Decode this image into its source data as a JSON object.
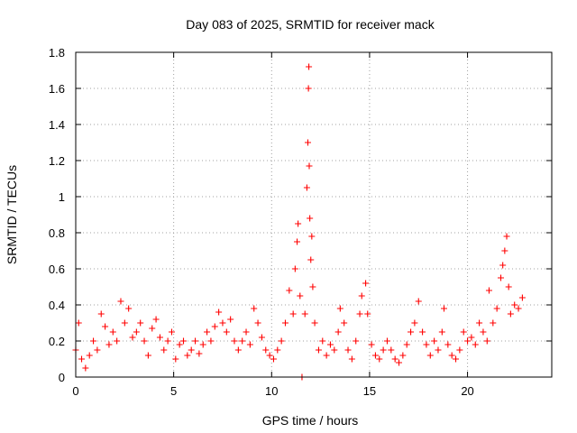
{
  "chart_data": {
    "type": "scatter",
    "title": "Day 083 of 2025, SRMTID for receiver mack",
    "xlabel": "GPS time / hours",
    "ylabel": "SRMTID / TECUs",
    "xlim": [
      0,
      24.3
    ],
    "ylim": [
      0,
      1.8
    ],
    "xticks": [
      0,
      5,
      10,
      15,
      20
    ],
    "xtick_labels": [
      "0",
      "5",
      "10",
      "15",
      "20"
    ],
    "yticks": [
      0,
      0.2,
      0.4,
      0.6,
      0.8,
      1,
      1.2,
      1.4,
      1.6,
      1.8
    ],
    "ytick_labels": [
      "0",
      "0.2",
      "0.4",
      "0.6",
      "0.8",
      "1",
      "1.2",
      "1.4",
      "1.6",
      "1.8"
    ],
    "grid": true,
    "marker": "+",
    "series": [
      {
        "name": "SRMTID",
        "color": "#ff0000",
        "points": [
          [
            0.0,
            0.15
          ],
          [
            0.15,
            0.3
          ],
          [
            0.3,
            0.1
          ],
          [
            0.5,
            0.05
          ],
          [
            0.7,
            0.12
          ],
          [
            0.9,
            0.2
          ],
          [
            1.1,
            0.15
          ],
          [
            1.3,
            0.35
          ],
          [
            1.5,
            0.28
          ],
          [
            1.7,
            0.18
          ],
          [
            1.9,
            0.25
          ],
          [
            2.1,
            0.2
          ],
          [
            2.3,
            0.42
          ],
          [
            2.5,
            0.3
          ],
          [
            2.7,
            0.38
          ],
          [
            2.9,
            0.22
          ],
          [
            3.1,
            0.25
          ],
          [
            3.3,
            0.3
          ],
          [
            3.5,
            0.2
          ],
          [
            3.7,
            0.12
          ],
          [
            3.9,
            0.27
          ],
          [
            4.1,
            0.32
          ],
          [
            4.3,
            0.22
          ],
          [
            4.5,
            0.15
          ],
          [
            4.7,
            0.2
          ],
          [
            4.9,
            0.25
          ],
          [
            5.1,
            0.1
          ],
          [
            5.3,
            0.18
          ],
          [
            5.5,
            0.2
          ],
          [
            5.7,
            0.12
          ],
          [
            5.9,
            0.15
          ],
          [
            6.1,
            0.2
          ],
          [
            6.3,
            0.13
          ],
          [
            6.5,
            0.18
          ],
          [
            6.7,
            0.25
          ],
          [
            6.9,
            0.2
          ],
          [
            7.1,
            0.28
          ],
          [
            7.3,
            0.36
          ],
          [
            7.5,
            0.3
          ],
          [
            7.7,
            0.25
          ],
          [
            7.9,
            0.32
          ],
          [
            8.1,
            0.2
          ],
          [
            8.3,
            0.15
          ],
          [
            8.5,
            0.2
          ],
          [
            8.7,
            0.25
          ],
          [
            8.9,
            0.18
          ],
          [
            9.1,
            0.38
          ],
          [
            9.3,
            0.3
          ],
          [
            9.5,
            0.22
          ],
          [
            9.7,
            0.15
          ],
          [
            9.9,
            0.12
          ],
          [
            10.1,
            0.1
          ],
          [
            10.3,
            0.15
          ],
          [
            10.5,
            0.2
          ],
          [
            10.7,
            0.3
          ],
          [
            10.9,
            0.48
          ],
          [
            11.1,
            0.35
          ],
          [
            11.2,
            0.6
          ],
          [
            11.3,
            0.75
          ],
          [
            11.35,
            0.85
          ],
          [
            11.45,
            0.45
          ],
          [
            11.55,
            0.0
          ],
          [
            11.7,
            0.35
          ],
          [
            11.8,
            1.05
          ],
          [
            11.85,
            1.3
          ],
          [
            11.88,
            1.6
          ],
          [
            11.9,
            1.72
          ],
          [
            11.92,
            1.17
          ],
          [
            11.95,
            0.88
          ],
          [
            12.0,
            0.65
          ],
          [
            12.05,
            0.78
          ],
          [
            12.1,
            0.5
          ],
          [
            12.2,
            0.3
          ],
          [
            12.4,
            0.15
          ],
          [
            12.6,
            0.2
          ],
          [
            12.8,
            0.12
          ],
          [
            13.0,
            0.18
          ],
          [
            13.2,
            0.15
          ],
          [
            13.4,
            0.25
          ],
          [
            13.5,
            0.38
          ],
          [
            13.7,
            0.3
          ],
          [
            13.9,
            0.15
          ],
          [
            14.1,
            0.1
          ],
          [
            14.3,
            0.2
          ],
          [
            14.5,
            0.35
          ],
          [
            14.6,
            0.45
          ],
          [
            14.8,
            0.52
          ],
          [
            14.9,
            0.35
          ],
          [
            15.1,
            0.18
          ],
          [
            15.3,
            0.12
          ],
          [
            15.5,
            0.1
          ],
          [
            15.7,
            0.15
          ],
          [
            15.9,
            0.2
          ],
          [
            16.1,
            0.15
          ],
          [
            16.3,
            0.1
          ],
          [
            16.5,
            0.08
          ],
          [
            16.7,
            0.12
          ],
          [
            16.9,
            0.18
          ],
          [
            17.1,
            0.25
          ],
          [
            17.3,
            0.3
          ],
          [
            17.5,
            0.42
          ],
          [
            17.7,
            0.25
          ],
          [
            17.9,
            0.18
          ],
          [
            18.1,
            0.12
          ],
          [
            18.3,
            0.2
          ],
          [
            18.5,
            0.15
          ],
          [
            18.7,
            0.25
          ],
          [
            18.8,
            0.38
          ],
          [
            19.0,
            0.18
          ],
          [
            19.2,
            0.12
          ],
          [
            19.4,
            0.1
          ],
          [
            19.6,
            0.15
          ],
          [
            19.8,
            0.25
          ],
          [
            20.0,
            0.2
          ],
          [
            20.2,
            0.22
          ],
          [
            20.4,
            0.18
          ],
          [
            20.6,
            0.3
          ],
          [
            20.8,
            0.25
          ],
          [
            21.0,
            0.2
          ],
          [
            21.1,
            0.48
          ],
          [
            21.3,
            0.3
          ],
          [
            21.5,
            0.38
          ],
          [
            21.7,
            0.55
          ],
          [
            21.8,
            0.62
          ],
          [
            21.9,
            0.7
          ],
          [
            22.0,
            0.78
          ],
          [
            22.1,
            0.5
          ],
          [
            22.2,
            0.35
          ],
          [
            22.4,
            0.4
          ],
          [
            22.6,
            0.38
          ],
          [
            22.8,
            0.44
          ]
        ]
      }
    ]
  }
}
